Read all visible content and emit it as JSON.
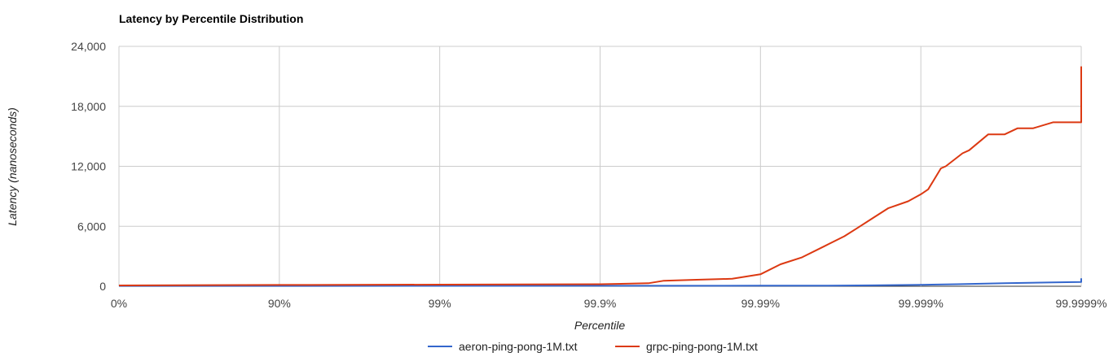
{
  "chart_data": {
    "type": "line",
    "title": "Latency by Percentile Distribution",
    "xlabel": "Percentile",
    "ylabel": "Latency (nanoseconds)",
    "x_scale": "log(1/(1-percentile))",
    "x_ticks": [
      "0%",
      "90%",
      "99%",
      "99.9%",
      "99.99%",
      "99.999%",
      "99.9999%"
    ],
    "y_ticks": [
      "0",
      "6,000",
      "12,000",
      "18,000",
      "24,000"
    ],
    "ylim": [
      0,
      24000
    ],
    "xlim_percentile": [
      0,
      99.9999
    ],
    "grid": true,
    "legend_position": "bottom",
    "series": [
      {
        "name": "aeron-ping-pong-1M.txt",
        "color": "#3366cc",
        "points": [
          [
            0,
            30
          ],
          [
            90,
            35
          ],
          [
            99,
            40
          ],
          [
            99.9,
            45
          ],
          [
            99.99,
            55
          ],
          [
            99.996,
            60
          ],
          [
            99.998,
            90
          ],
          [
            99.999,
            150
          ],
          [
            99.9994,
            200
          ],
          [
            99.9997,
            300
          ],
          [
            99.99985,
            380
          ],
          [
            99.9999,
            420
          ],
          [
            99.99993,
            450
          ],
          [
            99.99996,
            480
          ],
          [
            99.99999,
            500
          ],
          [
            99.9999,
            800
          ]
        ]
      },
      {
        "name": "grpc-ping-pong-1M.txt",
        "color": "#dc3912",
        "points": [
          [
            0,
            80
          ],
          [
            90,
            130
          ],
          [
            99,
            160
          ],
          [
            99.9,
            200
          ],
          [
            99.95,
            300
          ],
          [
            99.96,
            550
          ],
          [
            99.975,
            650
          ],
          [
            99.985,
            750
          ],
          [
            99.99,
            1200
          ],
          [
            99.9925,
            2200
          ],
          [
            99.9945,
            2900
          ],
          [
            99.996,
            4000
          ],
          [
            99.997,
            5000
          ],
          [
            99.9975,
            5800
          ],
          [
            99.998,
            6800
          ],
          [
            99.9984,
            7800
          ],
          [
            99.9988,
            8500
          ],
          [
            99.999,
            9200
          ],
          [
            99.9991,
            9700
          ],
          [
            99.99925,
            11800
          ],
          [
            99.9993,
            12000
          ],
          [
            99.99945,
            13300
          ],
          [
            99.9995,
            13600
          ],
          [
            99.99962,
            15200
          ],
          [
            99.9997,
            15200
          ],
          [
            99.99975,
            15800
          ],
          [
            99.9998,
            15800
          ],
          [
            99.99985,
            16400
          ],
          [
            99.9999,
            16400
          ],
          [
            99.99992,
            16400
          ],
          [
            99.99994,
            16400
          ],
          [
            99.99999,
            22000
          ]
        ]
      }
    ]
  }
}
